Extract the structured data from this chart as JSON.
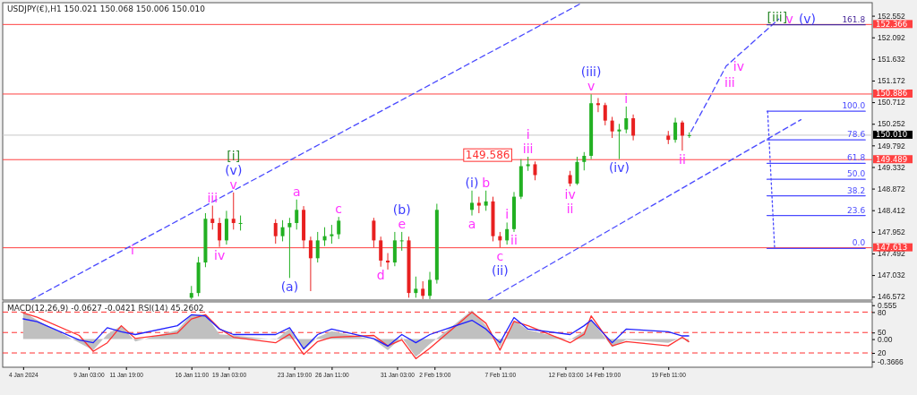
{
  "chart_data": [
    {
      "type": "candlestick",
      "title": "USDJPY(€),H1  150.021 150.068 150.006 150.010",
      "x": [
        "2024-01-16T11:00",
        "2024-01-16T23:00",
        "2024-01-17T11:00",
        "2024-01-17T23:00",
        "2024-01-18T11:00",
        "2024-01-18T23:00",
        "2024-01-19T11:00",
        "2024-01-19T23:00",
        "2024-01-22T11:00",
        "2024-01-22T23:00",
        "2024-01-23T11:00",
        "2024-01-23T23:00",
        "2024-01-24T11:00",
        "2024-01-24T23:00",
        "2024-01-25T11:00",
        "2024-01-25T23:00",
        "2024-01-26T11:00",
        "2024-01-26T23:00",
        "2024-01-29T11:00",
        "2024-01-29T23:00",
        "2024-01-30T11:00",
        "2024-01-30T23:00",
        "2024-01-31T11:00",
        "2024-01-31T23:00",
        "2024-02-01T11:00",
        "2024-02-01T23:00",
        "2024-02-02T11:00",
        "2024-02-02T23:00",
        "2024-02-05T11:00",
        "2024-02-05T23:00",
        "2024-02-06T11:00",
        "2024-02-06T23:00",
        "2024-02-07T11:00",
        "2024-02-07T23:00",
        "2024-02-08T11:00",
        "2024-02-08T23:00",
        "2024-02-09T11:00",
        "2024-02-09T23:00",
        "2024-02-12T11:00",
        "2024-02-12T23:00",
        "2024-02-13T11:00",
        "2024-02-13T23:00",
        "2024-02-14T11:00",
        "2024-02-14T23:00",
        "2024-02-15T11:00",
        "2024-02-15T23:00",
        "2024-02-16T11:00",
        "2024-02-16T23:00",
        "2024-02-19T11:00",
        "2024-02-19T23:00",
        "2024-02-20T11:00",
        "2024-02-20T23:00"
      ],
      "ohlc": [
        [
          146.55,
          146.8,
          146.52,
          146.65
        ],
        [
          146.65,
          147.42,
          146.58,
          147.3
        ],
        [
          147.3,
          148.35,
          147.2,
          148.23
        ],
        [
          148.23,
          148.51,
          148.0,
          148.14
        ],
        [
          148.14,
          148.25,
          147.63,
          147.77
        ],
        [
          147.77,
          148.4,
          147.68,
          148.23
        ],
        [
          148.23,
          148.79,
          148.0,
          148.14
        ],
        [
          148.14,
          148.3,
          147.98,
          148.14
        ],
        [
          148.14,
          148.22,
          147.7,
          147.86
        ],
        [
          147.86,
          148.2,
          147.75,
          148.05
        ],
        [
          148.05,
          148.25,
          146.97,
          148.14
        ],
        [
          148.14,
          148.64,
          148.0,
          148.42
        ],
        [
          148.42,
          148.5,
          147.6,
          147.77
        ],
        [
          147.77,
          147.85,
          146.69,
          147.39
        ],
        [
          147.39,
          147.95,
          147.3,
          147.77
        ],
        [
          147.77,
          148.05,
          147.65,
          147.86
        ],
        [
          147.86,
          148.1,
          147.7,
          147.9
        ],
        [
          147.9,
          148.27,
          147.8,
          148.19
        ],
        [
          148.19,
          148.25,
          147.62,
          147.77
        ],
        [
          147.77,
          147.85,
          147.21,
          147.34
        ],
        [
          147.34,
          147.5,
          147.15,
          147.3
        ],
        [
          147.3,
          147.95,
          147.22,
          147.77
        ],
        [
          147.77,
          147.95,
          147.55,
          147.77
        ],
        [
          147.77,
          147.85,
          146.55,
          146.65
        ],
        [
          146.65,
          147.0,
          146.55,
          146.74
        ],
        [
          146.74,
          146.9,
          146.52,
          146.59
        ],
        [
          146.59,
          147.1,
          146.52,
          146.93
        ],
        [
          146.93,
          148.55,
          146.85,
          148.42
        ],
        [
          148.42,
          148.83,
          148.3,
          148.57
        ],
        [
          148.57,
          148.7,
          148.35,
          148.51
        ],
        [
          148.51,
          148.83,
          148.4,
          148.6
        ],
        [
          148.6,
          148.7,
          147.75,
          147.86
        ],
        [
          147.86,
          147.95,
          147.62,
          147.77
        ],
        [
          147.77,
          148.15,
          147.68,
          148.01
        ],
        [
          148.01,
          148.8,
          147.95,
          148.7
        ],
        [
          148.7,
          149.5,
          148.65,
          149.35
        ],
        [
          149.35,
          149.55,
          149.25,
          149.39
        ],
        [
          149.39,
          149.45,
          149.05,
          149.16
        ],
        [
          149.16,
          149.25,
          148.92,
          148.98
        ],
        [
          148.98,
          149.55,
          148.95,
          149.44
        ],
        [
          149.44,
          149.65,
          149.26,
          149.57
        ],
        [
          149.57,
          150.88,
          149.5,
          150.69
        ],
        [
          150.69,
          150.8,
          150.5,
          150.65
        ],
        [
          150.65,
          150.7,
          150.22,
          150.32
        ],
        [
          150.32,
          150.4,
          149.95,
          150.09
        ],
        [
          150.09,
          150.25,
          149.5,
          150.13
        ],
        [
          150.13,
          150.62,
          150.05,
          150.37
        ],
        [
          150.37,
          150.45,
          149.9,
          150.0
        ],
        [
          150.0,
          150.1,
          149.82,
          149.91
        ],
        [
          149.91,
          150.38,
          149.85,
          150.28
        ],
        [
          150.28,
          150.32,
          149.68,
          150.0
        ],
        [
          150.0,
          150.07,
          149.95,
          150.01
        ]
      ],
      "series": [
        {
          "type": "line",
          "x": [
            "2024-01-05T00:00",
            "2024-01-11T15:00",
            "2024-02-13T08:00"
          ],
          "values": [
            146.5,
            147.57,
            152.83
          ],
          "color": "#4a4aff",
          "line_style": "dashed"
        },
        {
          "type": "line",
          "x": [
            "2024-02-06T15:00",
            "2024-02-28T22:00"
          ],
          "values": [
            146.5,
            150.34
          ],
          "color": "#4a4aff",
          "line_style": "dashed"
        },
        {
          "type": "line",
          "x": [
            "2024-02-21T02:00",
            "2024-02-22T11:00",
            "2024-02-22T23:00",
            "2024-02-23T14:00",
            "2024-02-27T08:00"
          ],
          "values": [
            150.09,
            150.84,
            151.13,
            151.48,
            152.48
          ],
          "color": "#4a4aff",
          "line_style": "dashed"
        },
        {
          "type": "line",
          "x": [
            "2024-02-26T13:00",
            "2024-02-27T01:00"
          ],
          "values": [
            150.52,
            147.6
          ],
          "color": "#4a4aff",
          "line_style": "dotted"
        },
        {
          "type": "line",
          "x": [
            "2024-02-26T12:00",
            "2024-03-04T12:00"
          ],
          "values": [
            152.36,
            152.36
          ],
          "color": "#4a2a9a",
          "line_style": "solid"
        },
        {
          "type": "line",
          "x": [
            "2024-02-26T12:00",
            "2024-03-04T12:00"
          ],
          "values": [
            150.52,
            150.52
          ],
          "color": "#4a4aff",
          "line_style": "solid"
        },
        {
          "type": "line",
          "x": [
            "2024-02-26T12:00",
            "2024-03-04T12:00"
          ],
          "values": [
            149.91,
            149.91
          ],
          "color": "#4a4aff",
          "line_style": "solid"
        },
        {
          "type": "line",
          "x": [
            "2024-02-26T12:00",
            "2024-03-04T12:00"
          ],
          "values": [
            149.41,
            149.41
          ],
          "color": "#4a4aff",
          "line_style": "solid"
        },
        {
          "type": "line",
          "x": [
            "2024-02-26T12:00",
            "2024-03-04T12:00"
          ],
          "values": [
            149.07,
            149.07
          ],
          "color": "#4a4aff",
          "line_style": "solid"
        },
        {
          "type": "line",
          "x": [
            "2024-02-26T12:00",
            "2024-03-04T12:00"
          ],
          "values": [
            148.72,
            148.72
          ],
          "color": "#4a4aff",
          "line_style": "solid"
        },
        {
          "type": "line",
          "x": [
            "2024-02-26T12:00",
            "2024-03-04T12:00"
          ],
          "values": [
            148.3,
            148.3
          ],
          "color": "#4a4aff",
          "line_style": "solid"
        },
        {
          "type": "line",
          "x": [
            "2024-02-26T12:00",
            "2024-03-04T12:00"
          ],
          "values": [
            147.6,
            147.6
          ],
          "color": "#4a4aff",
          "line_style": "solid"
        }
      ],
      "ref_lines": [
        {
          "axis": "y",
          "value": 152.366,
          "label": "152.366",
          "color": "#ff4040",
          "line_style": "solid"
        },
        {
          "axis": "y",
          "value": 150.886,
          "label": "150.886",
          "color": "#ff4040",
          "line_style": "solid"
        },
        {
          "axis": "y",
          "value": 150.01,
          "label": "150.010",
          "color": "#c8c8c8",
          "line_style": "solid"
        },
        {
          "axis": "y",
          "value": 149.489,
          "label": "149.489",
          "color": "#ff4040",
          "line_style": "solid"
        },
        {
          "axis": "y",
          "value": 147.613,
          "label": "147.613",
          "color": "#ff4040",
          "line_style": "solid"
        }
      ],
      "annotations": [
        {
          "text": "i",
          "x": "2024-01-11T15:00",
          "y": 147.57
        },
        {
          "text": "iii",
          "x": "2024-01-17T23:00",
          "y": 148.51
        },
        {
          "text": "iv",
          "x": "2024-01-18T11:00",
          "y": 147.63
        },
        {
          "text": "v",
          "x": "2024-01-19T11:00",
          "y": 148.79
        },
        {
          "text": "(v)",
          "x": "2024-01-19T11:00",
          "y": 148.79
        },
        {
          "text": "[i]",
          "x": "2024-01-19T11:00",
          "y": 148.79
        },
        {
          "text": "a",
          "x": "2024-01-23T23:00",
          "y": 148.64
        },
        {
          "text": "(a)",
          "x": "2024-01-23T11:00",
          "y": 146.97
        },
        {
          "text": "c",
          "x": "2024-01-26T23:00",
          "y": 148.27
        },
        {
          "text": "d",
          "x": "2024-01-29T23:00",
          "y": 147.21
        },
        {
          "text": "e",
          "x": "2024-01-31T11:00",
          "y": 147.95
        },
        {
          "text": "(b)",
          "x": "2024-01-31T11:00",
          "y": 147.95
        },
        {
          "text": "(i)",
          "x": "2024-02-05T11:00",
          "y": 148.83
        },
        {
          "text": "b",
          "x": "2024-02-06T11:00",
          "y": 148.83
        },
        {
          "text": "a",
          "x": "2024-02-05T11:00",
          "y": 148.3
        },
        {
          "text": "i",
          "x": "2024-02-07T23:00",
          "y": 148.15
        },
        {
          "text": "ii",
          "x": "2024-02-08T11:00",
          "y": 147.95
        },
        {
          "text": "c",
          "x": "2024-02-07T11:00",
          "y": 147.62
        },
        {
          "text": "(ii)",
          "x": "2024-02-07T11:00",
          "y": 147.62
        },
        {
          "text": "iii",
          "x": "2024-02-09T11:00",
          "y": 149.55
        },
        {
          "text": "i",
          "x": "2024-02-09T11:00",
          "y": 149.55
        },
        {
          "text": "iv",
          "x": "2024-02-12T11:00",
          "y": 148.92
        },
        {
          "text": "ii",
          "x": "2024-02-12T11:00",
          "y": 148.92
        },
        {
          "text": "v",
          "x": "2024-02-13T23:00",
          "y": 150.88
        },
        {
          "text": "(iii)",
          "x": "2024-02-13T23:00",
          "y": 150.88
        },
        {
          "text": "i",
          "x": "2024-02-16T11:00",
          "y": 150.62
        },
        {
          "text": "(iv)",
          "x": "2024-02-15T23:00",
          "y": 149.5
        },
        {
          "text": "ii",
          "x": "2024-02-20T11:00",
          "y": 149.68
        },
        {
          "text": "iii",
          "x": "2024-02-22T23:00",
          "y": 151.13
        },
        {
          "text": "iv",
          "x": "2024-02-23T14:00",
          "y": 151.48
        },
        {
          "text": "v",
          "x": "2024-02-27T08:00",
          "y": 152.48
        },
        {
          "text": "(v)",
          "x": "2024-02-27T08:00",
          "y": 152.48
        },
        {
          "text": "[iii]",
          "x": "2024-02-26T12:00",
          "y": 152.36
        },
        {
          "text": "149.586",
          "x": "2024-02-06T14:00",
          "y": 149.586
        },
        {
          "text": "161.8",
          "x": "2024-03-04T12:00",
          "y": 152.36
        },
        {
          "text": "100.0",
          "x": "2024-03-04T12:00",
          "y": 150.52
        },
        {
          "text": "78.6",
          "x": "2024-03-04T12:00",
          "y": 149.91
        },
        {
          "text": "61.8",
          "x": "2024-03-04T12:00",
          "y": 149.41
        },
        {
          "text": "50.0",
          "x": "2024-03-04T12:00",
          "y": 149.07
        },
        {
          "text": "38.2",
          "x": "2024-03-04T12:00",
          "y": 148.72
        },
        {
          "text": "23.6",
          "x": "2024-03-04T12:00",
          "y": 148.3
        },
        {
          "text": "0.0",
          "x": "2024-03-04T12:00",
          "y": 147.6
        }
      ],
      "xlim": [
        "2024-01-03T00:00",
        "2024-03-05T00:00"
      ],
      "ylim": [
        146.5,
        152.83
      ],
      "yticks": [
        152.552,
        152.092,
        151.632,
        151.172,
        150.712,
        150.252,
        149.792,
        149.332,
        148.872,
        148.412,
        147.952,
        147.492,
        147.032,
        146.572
      ],
      "tick_labels": "y",
      "grid": false
    },
    {
      "type": "line",
      "title": "MACD(12,26,9) -0.0627 -0.0421  RSI(14) 45.2602",
      "x": [
        "2024-01-04T11:00",
        "2024-01-05T11:00",
        "2024-01-08T11:00",
        "2024-01-09T11:00",
        "2024-01-10T11:00",
        "2024-01-11T11:00",
        "2024-01-12T11:00",
        "2024-01-15T11:00",
        "2024-01-16T11:00",
        "2024-01-17T11:00",
        "2024-01-18T11:00",
        "2024-01-19T11:00",
        "2024-01-22T11:00",
        "2024-01-23T11:00",
        "2024-01-24T11:00",
        "2024-01-25T11:00",
        "2024-01-26T11:00",
        "2024-01-29T11:00",
        "2024-01-30T11:00",
        "2024-01-31T11:00",
        "2024-02-01T11:00",
        "2024-02-02T11:00",
        "2024-02-05T11:00",
        "2024-02-06T11:00",
        "2024-02-07T11:00",
        "2024-02-08T11:00",
        "2024-02-09T11:00",
        "2024-02-12T11:00",
        "2024-02-13T11:00",
        "2024-02-13T23:00",
        "2024-02-14T11:00",
        "2024-02-15T11:00",
        "2024-02-16T11:00",
        "2024-02-19T11:00",
        "2024-02-20T11:00",
        "2024-02-20T22:00"
      ],
      "series": [
        {
          "type": "area",
          "axis": "y2",
          "color": "#c0c0c0",
          "values": [
            0.45,
            0.31,
            -0.06,
            -0.18,
            0.08,
            0.22,
            -0.04,
            0.15,
            0.4,
            0.4,
            0.08,
            0.06,
            -0.01,
            0.17,
            -0.18,
            0.03,
            0.13,
            -0.01,
            -0.18,
            0.03,
            -0.29,
            -0.08,
            0.47,
            0.22,
            -0.13,
            0.31,
            0.15,
            -0.01,
            0.13,
            0.33,
            0.17,
            -0.13,
            -0.01,
            -0.06,
            0.03,
            -0.06
          ]
        },
        {
          "type": "line",
          "axis": "y2",
          "color": "#ff3030",
          "values": [
            0.43,
            0.36,
            0.06,
            -0.2,
            -0.06,
            0.22,
            0.01,
            0.1,
            0.33,
            0.4,
            0.17,
            0.03,
            -0.06,
            0.08,
            -0.25,
            -0.04,
            0.03,
            0.06,
            -0.11,
            -0.01,
            -0.32,
            -0.15,
            0.44,
            0.26,
            -0.18,
            0.29,
            0.22,
            -0.06,
            0.08,
            0.38,
            0.22,
            -0.11,
            -0.04,
            -0.11,
            0.03,
            -0.04
          ]
        },
        {
          "type": "line",
          "axis": "y",
          "color": "#2020ff",
          "values": [
            70,
            66,
            39,
            35,
            57,
            51,
            47,
            60,
            76,
            74,
            55,
            47,
            47,
            57,
            26,
            47,
            55,
            41,
            30,
            47,
            35,
            47,
            68,
            55,
            35,
            72,
            55,
            47,
            60,
            68,
            57,
            35,
            55,
            51,
            45,
            45
          ]
        }
      ],
      "ref_lines": [
        {
          "axis": "y",
          "value": 80,
          "color": "#ff3030",
          "line_style": "dashed"
        },
        {
          "axis": "y",
          "value": 50,
          "color": "#ff3030",
          "line_style": "dashed"
        },
        {
          "axis": "y",
          "value": 20,
          "color": "#ff3030",
          "line_style": "dashed"
        }
      ],
      "xlim": [
        "2024-01-03T00:00",
        "2024-03-05T00:00"
      ],
      "ylim": [
        -1,
        95
      ],
      "yticks": [
        80,
        50,
        20
      ],
      "y2lim": [
        -0.46,
        0.61
      ],
      "y2ticks": [
        0.555,
        {
          "value": 0,
          "label": "0.00"
        },
        -0.3666
      ],
      "xticks": [
        {
          "value": "2024-01-04T11:00",
          "label": "4 Jan 2024"
        },
        {
          "value": "2024-01-09T03:00",
          "label": "9 Jan 03:00"
        },
        {
          "value": "2024-01-11T19:00",
          "label": "11 Jan 19:00"
        },
        {
          "value": "2024-01-16T11:00",
          "label": "16 Jan 11:00"
        },
        {
          "value": "2024-01-19T03:00",
          "label": "19 Jan 03:00"
        },
        {
          "value": "2024-01-23T19:00",
          "label": "23 Jan 19:00"
        },
        {
          "value": "2024-01-26T11:00",
          "label": "26 Jan 11:00"
        },
        {
          "value": "2024-01-31T03:00",
          "label": "31 Jan 03:00"
        },
        {
          "value": "2024-02-02T19:00",
          "label": "2 Feb 19:00"
        },
        {
          "value": "2024-02-07T11:00",
          "label": "7 Feb 11:00"
        },
        {
          "value": "2024-02-12T03:00",
          "label": "12 Feb 03:00"
        },
        {
          "value": "2024-02-14T19:00",
          "label": "14 Feb 19:00"
        },
        {
          "value": "2024-02-19T11:00",
          "label": "19 Feb 11:00"
        }
      ],
      "grid": false
    }
  ]
}
